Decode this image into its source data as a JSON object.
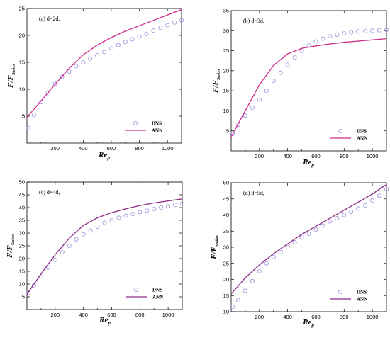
{
  "chart_data": [
    {
      "type": "line",
      "annotation": "(a) d=2d,",
      "xlabel": "Re_p",
      "ylabel": "F/F_Stokes",
      "xlim": [
        0,
        1100
      ],
      "ylim": [
        0,
        25
      ],
      "xticks": [
        200,
        400,
        600,
        800,
        1000
      ],
      "yticks": [
        5,
        10,
        15,
        20,
        25
      ],
      "legend_position": "bottom-right",
      "series": [
        {
          "name": "DNS",
          "style": "circles",
          "color": "#9b8fd9",
          "x": [
            10,
            50,
            100,
            150,
            200,
            250,
            300,
            350,
            400,
            450,
            500,
            550,
            600,
            650,
            700,
            750,
            800,
            850,
            900,
            950,
            1000,
            1050,
            1100
          ],
          "y": [
            2.8,
            5.2,
            7.6,
            9.4,
            11.0,
            12.3,
            13.3,
            14.3,
            15.0,
            15.7,
            16.3,
            16.9,
            17.6,
            18.2,
            18.8,
            19.3,
            19.8,
            20.3,
            20.9,
            21.4,
            21.9,
            22.4,
            22.8
          ]
        },
        {
          "name": "ANN",
          "style": "line",
          "color": "#cc2a8c",
          "x": [
            0,
            100,
            200,
            300,
            400,
            500,
            600,
            700,
            800,
            900,
            1000,
            1100
          ],
          "y": [
            4.8,
            7.8,
            10.9,
            13.9,
            16.4,
            18.2,
            19.6,
            20.8,
            21.8,
            22.8,
            23.8,
            24.8
          ]
        }
      ]
    },
    {
      "type": "line",
      "annotation": "(b) d=3d,",
      "xlabel": "Re_p",
      "ylabel": "F/F_Stokes",
      "xlim": [
        0,
        1100
      ],
      "ylim": [
        0,
        35
      ],
      "xticks": [
        200,
        400,
        600,
        800,
        1000
      ],
      "yticks": [
        5,
        10,
        15,
        20,
        25,
        30,
        35
      ],
      "legend_position": "bottom-right",
      "series": [
        {
          "name": "DNS",
          "style": "circles",
          "color": "#9b8fd9",
          "x": [
            10,
            50,
            100,
            150,
            200,
            250,
            300,
            350,
            400,
            450,
            500,
            550,
            600,
            650,
            700,
            750,
            800,
            850,
            900,
            950,
            1000,
            1050,
            1100
          ],
          "y": [
            4.2,
            6.5,
            8.8,
            10.8,
            12.8,
            15.0,
            17.5,
            19.5,
            21.5,
            23.3,
            25.0,
            26.3,
            27.3,
            28.0,
            28.6,
            29.0,
            29.3,
            29.6,
            29.8,
            29.9,
            30.0,
            30.1,
            30.2
          ]
        },
        {
          "name": "ANN",
          "style": "line",
          "color": "#cc2a8c",
          "x": [
            0,
            100,
            200,
            300,
            400,
            500,
            600,
            700,
            800,
            900,
            1000,
            1100
          ],
          "y": [
            3.5,
            10.0,
            16.5,
            21.3,
            24.2,
            25.6,
            26.2,
            26.7,
            27.1,
            27.4,
            27.7,
            28.0
          ]
        }
      ]
    },
    {
      "type": "line",
      "annotation": "(c) d=4d,",
      "xlabel": "Re_p",
      "ylabel": "F/F_Stokes",
      "xlim": [
        0,
        1100
      ],
      "ylim": [
        0,
        50
      ],
      "xticks": [
        200,
        400,
        600,
        800,
        1000
      ],
      "yticks": [
        5,
        10,
        15,
        20,
        25,
        30,
        35,
        40,
        45,
        50
      ],
      "legend_position": "bottom-right",
      "series": [
        {
          "name": "DNS",
          "style": "circles",
          "color": "#9b8fd9",
          "x": [
            10,
            50,
            100,
            150,
            200,
            250,
            300,
            350,
            400,
            450,
            500,
            550,
            600,
            650,
            700,
            750,
            800,
            850,
            900,
            950,
            1000,
            1050,
            1100
          ],
          "y": [
            6.5,
            9.5,
            13.0,
            16.5,
            19.5,
            22.5,
            25.0,
            27.5,
            29.5,
            31.0,
            32.5,
            34.0,
            35.0,
            36.0,
            36.8,
            37.5,
            38.2,
            38.8,
            39.4,
            40.0,
            40.5,
            41.0,
            41.5
          ]
        },
        {
          "name": "ANN",
          "style": "line",
          "color": "#8b2a86",
          "x": [
            0,
            100,
            200,
            300,
            400,
            500,
            600,
            700,
            800,
            900,
            1000,
            1100
          ],
          "y": [
            6.0,
            14.0,
            21.5,
            28.0,
            33.0,
            36.0,
            38.0,
            39.5,
            40.8,
            41.8,
            42.6,
            43.4
          ]
        }
      ]
    },
    {
      "type": "line",
      "annotation": "(d) d=5d,",
      "xlabel": "Re_p",
      "ylabel": "F/F_Stokes",
      "xlim": [
        0,
        1100
      ],
      "ylim": [
        10,
        50
      ],
      "xticks": [
        200,
        400,
        600,
        800,
        1000
      ],
      "yticks": [
        10,
        15,
        20,
        25,
        30,
        35,
        40,
        45,
        50
      ],
      "legend_position": "bottom-right",
      "series": [
        {
          "name": "DNS",
          "style": "circles",
          "color": "#9b8fd9",
          "x": [
            10,
            50,
            100,
            150,
            200,
            250,
            300,
            350,
            400,
            450,
            500,
            550,
            600,
            650,
            700,
            750,
            800,
            850,
            900,
            950,
            1000,
            1050,
            1100
          ],
          "y": [
            11.5,
            13.5,
            16.5,
            19.5,
            22.5,
            25.0,
            27.0,
            28.5,
            30.0,
            31.5,
            33.0,
            34.2,
            35.5,
            36.7,
            38.0,
            39.0,
            40.0,
            41.0,
            42.0,
            43.0,
            44.5,
            46.0,
            48.0
          ]
        },
        {
          "name": "ANN",
          "style": "line",
          "color": "#8b2a86",
          "x": [
            0,
            100,
            200,
            300,
            400,
            500,
            600,
            700,
            800,
            900,
            1000,
            1100
          ],
          "y": [
            15.5,
            20.5,
            24.5,
            28.0,
            31.0,
            34.0,
            36.5,
            39.0,
            41.5,
            44.0,
            46.5,
            49.5
          ]
        }
      ]
    }
  ]
}
